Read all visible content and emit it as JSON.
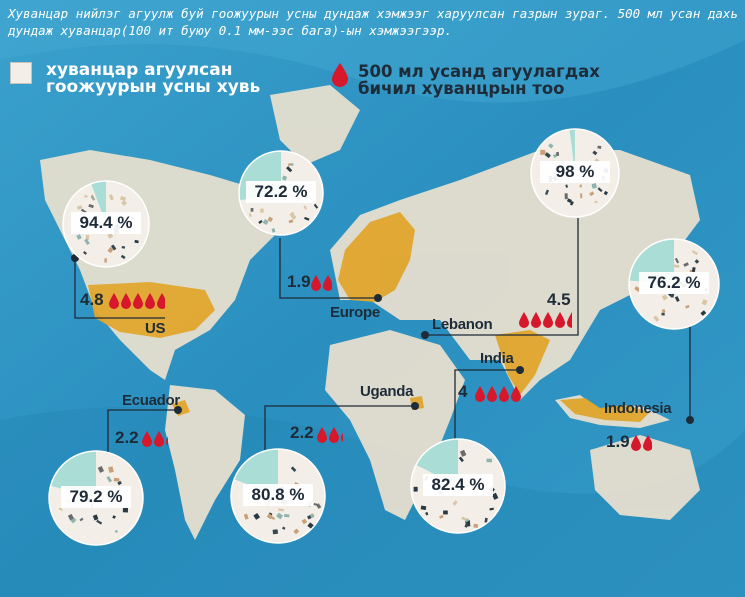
{
  "subtitle": "Хуванцар нийлэг агуулж буй гоожуурын усны дундаж хэмжээг харуулсан газрын зураг. 500 мл усан дахь дундаж хуванцар(100 ит буюу 0.1 мм-ээс бага)-ын хэмжээгээр.",
  "legend": {
    "share_label": "хуванцар агуулсан гоожуурын усны хувь",
    "count_label": "500 мл усанд агуулагдах бичил хуванцрын тоо"
  },
  "colors": {
    "ocean": "#2f95c2",
    "land": "#e6dfcf",
    "highlight": "#e0a52c",
    "pie_plastic": "#f3efe8",
    "pie_clean": "#a9ddd6",
    "drop": "#d7172b",
    "line": "#1e2b38"
  },
  "map_data": [
    {
      "country": "US",
      "share_label": "94.4 %",
      "share": 94.4,
      "count_label": "4.8",
      "count": 4.8
    },
    {
      "country": "Europe",
      "share_label": "72.2 %",
      "share": 72.2,
      "count_label": "1.9",
      "count": 1.9
    },
    {
      "country": "Lebanon",
      "share_label": "98 %",
      "share": 98,
      "count_label": "4.5",
      "count": 4.5
    },
    {
      "country": "Indonesia",
      "share_label": "76.2 %",
      "share": 76.2,
      "count_label": "1.9",
      "count": 1.9
    },
    {
      "country": "India",
      "share_label": "82.4 %",
      "share": 82.4,
      "count_label": "4",
      "count": 4
    },
    {
      "country": "Uganda",
      "share_label": "80.8 %",
      "share": 80.8,
      "count_label": "2.2",
      "count": 2.2
    },
    {
      "country": "Ecuador",
      "share_label": "79.2 %",
      "share": 79.2,
      "count_label": "2.2",
      "count": 2.2
    }
  ]
}
